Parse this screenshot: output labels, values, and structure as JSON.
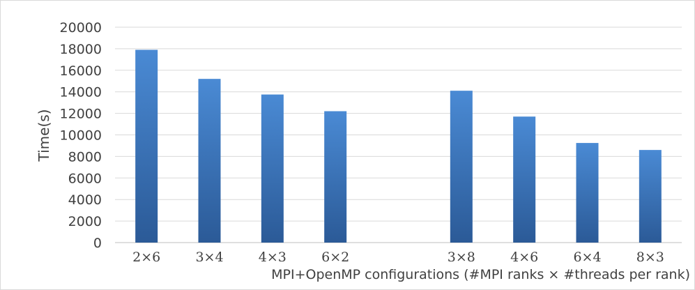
{
  "chart_data": {
    "type": "bar",
    "title": "",
    "xlabel": "MPI+OpenMP configurations (#MPI ranks × #threads per rank)",
    "ylabel": "Time(s)",
    "ylim": [
      0,
      20000
    ],
    "yticks": [
      0,
      2000,
      4000,
      6000,
      8000,
      10000,
      12000,
      14000,
      16000,
      18000,
      20000
    ],
    "grid": true,
    "legend": "none",
    "bar_color_top": "#4a8ad4",
    "bar_color_bottom": "#2b5a97",
    "categories": [
      "2×6",
      "3×4",
      "4×3",
      "6×2",
      "",
      "3×8",
      "4×6",
      "6×4",
      "8×3"
    ],
    "values": [
      17900,
      15200,
      13750,
      12200,
      null,
      14100,
      11700,
      9250,
      8600
    ]
  }
}
